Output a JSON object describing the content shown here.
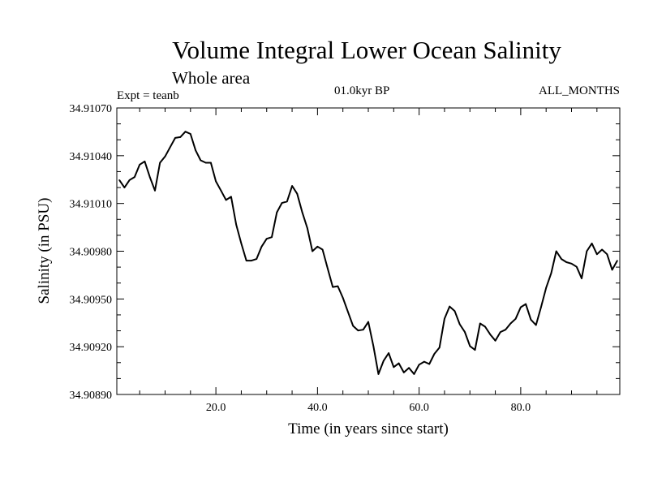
{
  "chart_data": {
    "type": "line",
    "title": "Volume Integral Lower Ocean Salinity",
    "subtitle": "Whole area",
    "experiment_label": "Expt = teanb",
    "period_label": "01.0kyr BP",
    "months_label": "ALL_MONTHS",
    "xlabel": "Time (in years since start)",
    "ylabel": "Salinity (in PSU)",
    "xlim": [
      0.5,
      99.5
    ],
    "ylim": [
      34.9089,
      34.9107
    ],
    "x_ticks": [
      20,
      40,
      60,
      80
    ],
    "x_tick_labels": [
      "20.0",
      "40.0",
      "60.0",
      "80.0"
    ],
    "y_ticks": [
      34.9089,
      34.9092,
      34.9095,
      34.9098,
      34.9101,
      34.9104,
      34.9107
    ],
    "y_tick_labels": [
      "34.90890",
      "34.90920",
      "34.90950",
      "34.90980",
      "34.91010",
      "34.91040",
      "34.91070"
    ],
    "grid": false,
    "series": [
      {
        "name": "Salinity",
        "x": [
          1,
          2,
          3,
          4,
          5,
          6,
          7,
          8,
          9,
          10,
          11,
          12,
          13,
          14,
          15,
          16,
          17,
          18,
          19,
          20,
          21,
          22,
          23,
          24,
          25,
          26,
          27,
          28,
          29,
          30,
          31,
          32,
          33,
          34,
          35,
          36,
          37,
          38,
          39,
          40,
          41,
          42,
          43,
          44,
          45,
          46,
          47,
          48,
          49,
          50,
          51,
          52,
          53,
          54,
          55,
          56,
          57,
          58,
          59,
          60,
          61,
          62,
          63,
          64,
          65,
          66,
          67,
          68,
          69,
          70,
          71,
          72,
          73,
          74,
          75,
          76,
          77,
          78,
          79,
          80,
          81,
          82,
          83,
          84,
          85,
          86,
          87,
          88,
          89,
          90,
          91,
          92,
          93,
          94,
          95,
          96,
          97,
          98,
          99
        ],
        "values": [
          34.910247,
          34.9102,
          34.910247,
          34.910266,
          34.910344,
          34.910364,
          34.910266,
          34.910181,
          34.910356,
          34.910395,
          34.910454,
          34.910512,
          34.910517,
          34.910551,
          34.910537,
          34.910434,
          34.910371,
          34.910356,
          34.910356,
          34.910239,
          34.910181,
          34.910122,
          34.910142,
          34.909966,
          34.909849,
          34.909741,
          34.909741,
          34.909751,
          34.909829,
          34.909878,
          34.909888,
          34.910044,
          34.910103,
          34.910112,
          34.91021,
          34.910161,
          34.910044,
          34.909946,
          34.9098,
          34.909829,
          34.90981,
          34.909692,
          34.909575,
          34.90958,
          34.909507,
          34.909419,
          34.909331,
          34.909302,
          34.909307,
          34.909356,
          34.909204,
          34.909028,
          34.909111,
          34.90916,
          34.909072,
          34.909096,
          34.909038,
          34.909067,
          34.909028,
          34.909087,
          34.909106,
          34.909091,
          34.909155,
          34.909194,
          34.909375,
          34.909453,
          34.909424,
          34.909341,
          34.909292,
          34.909204,
          34.90918,
          34.909346,
          34.909326,
          34.909277,
          34.909238,
          34.909292,
          34.909307,
          34.909346,
          34.909375,
          34.909448,
          34.909468,
          34.90937,
          34.909336,
          34.909448,
          34.90957,
          34.909663,
          34.9098,
          34.909751,
          34.909731,
          34.909722,
          34.909702,
          34.909629,
          34.9098,
          34.909849,
          34.909781,
          34.90981,
          34.909781,
          34.909683,
          34.909741
        ]
      }
    ]
  }
}
